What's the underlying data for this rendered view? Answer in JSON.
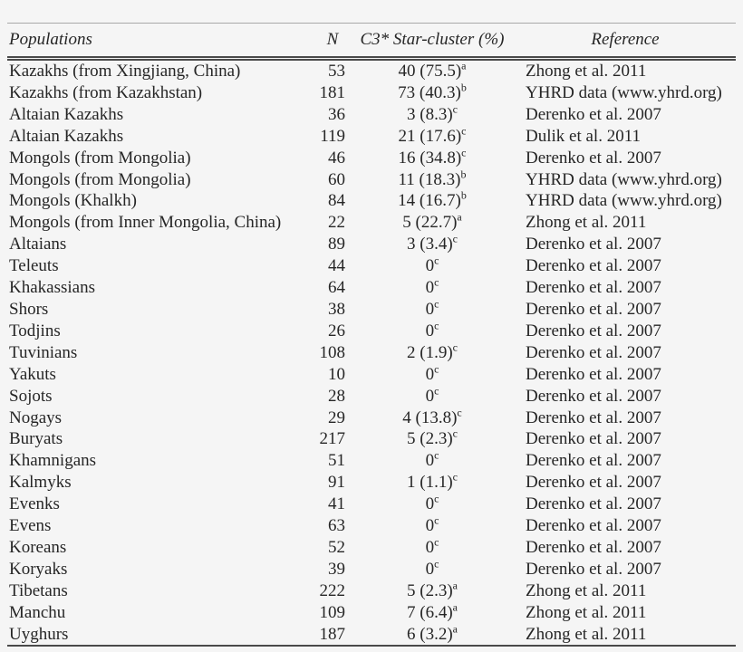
{
  "style": {
    "background": "#f5f5f5",
    "text_color": "#262626",
    "rule_color": "#4a4a4a",
    "top_rule_color": "#a9a9a9"
  },
  "table": {
    "columns": [
      {
        "label": "Populations"
      },
      {
        "label": "N"
      },
      {
        "label": "C3* Star-cluster (%)"
      },
      {
        "label": "Reference"
      }
    ],
    "rows": [
      {
        "population": "Kazakhs (from Xingjiang, China)",
        "n": "53",
        "star_cluster": "40 (75.5)",
        "star_sup": "a",
        "reference": "Zhong et al. 2011"
      },
      {
        "population": "Kazakhs (from Kazakhstan)",
        "n": "181",
        "star_cluster": "73 (40.3)",
        "star_sup": "b",
        "reference": "YHRD data (www.yhrd.org)"
      },
      {
        "population": "Altaian Kazakhs",
        "n": "36",
        "star_cluster": "3 (8.3)",
        "star_sup": "c",
        "reference": "Derenko et al. 2007"
      },
      {
        "population": "Altaian Kazakhs",
        "n": "119",
        "star_cluster": "21 (17.6)",
        "star_sup": "c",
        "reference": "Dulik et al. 2011"
      },
      {
        "population": "Mongols (from Mongolia)",
        "n": "46",
        "star_cluster": "16 (34.8)",
        "star_sup": "c",
        "reference": "Derenko et al. 2007"
      },
      {
        "population": "Mongols (from Mongolia)",
        "n": "60",
        "star_cluster": "11 (18.3)",
        "star_sup": "b",
        "reference": "YHRD data (www.yhrd.org)"
      },
      {
        "population": "Mongols (Khalkh)",
        "n": "84",
        "star_cluster": "14 (16.7)",
        "star_sup": "b",
        "reference": "YHRD data (www.yhrd.org)"
      },
      {
        "population": "Mongols (from Inner Mongolia, China)",
        "n": "22",
        "star_cluster": "5 (22.7)",
        "star_sup": "a",
        "reference": "Zhong et al. 2011"
      },
      {
        "population": "Altaians",
        "n": "89",
        "star_cluster": "3 (3.4)",
        "star_sup": "c",
        "reference": "Derenko et al. 2007"
      },
      {
        "population": "Teleuts",
        "n": "44",
        "star_cluster": "0",
        "star_sup": "c",
        "reference": "Derenko et al. 2007"
      },
      {
        "population": "Khakassians",
        "n": "64",
        "star_cluster": "0",
        "star_sup": "c",
        "reference": "Derenko et al. 2007"
      },
      {
        "population": "Shors",
        "n": "38",
        "star_cluster": "0",
        "star_sup": "c",
        "reference": "Derenko et al. 2007"
      },
      {
        "population": "Todjins",
        "n": "26",
        "star_cluster": "0",
        "star_sup": "c",
        "reference": "Derenko et al. 2007"
      },
      {
        "population": "Tuvinians",
        "n": "108",
        "star_cluster": "2 (1.9)",
        "star_sup": "c",
        "reference": "Derenko et al. 2007"
      },
      {
        "population": "Yakuts",
        "n": "10",
        "star_cluster": "0",
        "star_sup": "c",
        "reference": "Derenko et al. 2007"
      },
      {
        "population": "Sojots",
        "n": "28",
        "star_cluster": "0",
        "star_sup": "c",
        "reference": "Derenko et al. 2007"
      },
      {
        "population": "Nogays",
        "n": "29",
        "star_cluster": "4 (13.8)",
        "star_sup": "c",
        "reference": "Derenko et al. 2007"
      },
      {
        "population": "Buryats",
        "n": "217",
        "star_cluster": "5 (2.3)",
        "star_sup": "c",
        "reference": "Derenko et al. 2007"
      },
      {
        "population": "Khamnigans",
        "n": "51",
        "star_cluster": "0",
        "star_sup": "c",
        "reference": "Derenko et al. 2007"
      },
      {
        "population": "Kalmyks",
        "n": "91",
        "star_cluster": "1 (1.1)",
        "star_sup": "c",
        "reference": "Derenko et al. 2007"
      },
      {
        "population": "Evenks",
        "n": "41",
        "star_cluster": "0",
        "star_sup": "c",
        "reference": "Derenko et al. 2007"
      },
      {
        "population": "Evens",
        "n": "63",
        "star_cluster": "0",
        "star_sup": "c",
        "reference": "Derenko et al. 2007"
      },
      {
        "population": "Koreans",
        "n": "52",
        "star_cluster": "0",
        "star_sup": "c",
        "reference": "Derenko et al. 2007"
      },
      {
        "population": "Koryaks",
        "n": "39",
        "star_cluster": "0",
        "star_sup": "c",
        "reference": "Derenko et al. 2007"
      },
      {
        "population": "Tibetans",
        "n": "222",
        "star_cluster": "5 (2.3)",
        "star_sup": "a",
        "reference": "Zhong et al. 2011"
      },
      {
        "population": "Manchu",
        "n": "109",
        "star_cluster": "7 (6.4)",
        "star_sup": "a",
        "reference": "Zhong et al. 2011"
      },
      {
        "population": "Uyghurs",
        "n": "187",
        "star_cluster": "6 (3.2)",
        "star_sup": "a",
        "reference": "Zhong et al. 2011"
      }
    ]
  }
}
